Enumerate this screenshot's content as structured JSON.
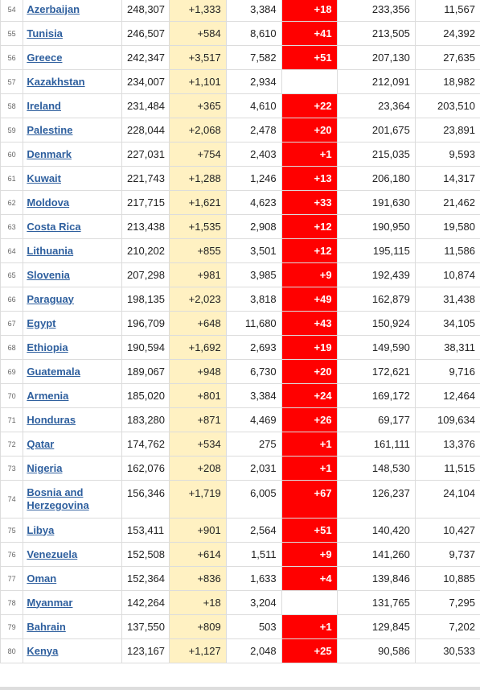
{
  "colors": {
    "new_cases_bg": "#fff1c2",
    "new_deaths_bg": "#ff0000",
    "link": "#2e5f9e"
  },
  "rows": [
    {
      "rank": "54",
      "country": "Azerbaijan",
      "total_cases": "248,307",
      "new_cases": "+1,333",
      "total_deaths": "3,384",
      "new_deaths": "+18",
      "total_recovered": "233,356",
      "active_cases": "11,567"
    },
    {
      "rank": "55",
      "country": "Tunisia",
      "total_cases": "246,507",
      "new_cases": "+584",
      "total_deaths": "8,610",
      "new_deaths": "+41",
      "total_recovered": "213,505",
      "active_cases": "24,392"
    },
    {
      "rank": "56",
      "country": "Greece",
      "total_cases": "242,347",
      "new_cases": "+3,517",
      "total_deaths": "7,582",
      "new_deaths": "+51",
      "total_recovered": "207,130",
      "active_cases": "27,635"
    },
    {
      "rank": "57",
      "country": "Kazakhstan",
      "total_cases": "234,007",
      "new_cases": "+1,101",
      "total_deaths": "2,934",
      "new_deaths": "",
      "total_recovered": "212,091",
      "active_cases": "18,982"
    },
    {
      "rank": "58",
      "country": "Ireland",
      "total_cases": "231,484",
      "new_cases": "+365",
      "total_deaths": "4,610",
      "new_deaths": "+22",
      "total_recovered": "23,364",
      "active_cases": "203,510"
    },
    {
      "rank": "59",
      "country": "Palestine",
      "total_cases": "228,044",
      "new_cases": "+2,068",
      "total_deaths": "2,478",
      "new_deaths": "+20",
      "total_recovered": "201,675",
      "active_cases": "23,891"
    },
    {
      "rank": "60",
      "country": "Denmark",
      "total_cases": "227,031",
      "new_cases": "+754",
      "total_deaths": "2,403",
      "new_deaths": "+1",
      "total_recovered": "215,035",
      "active_cases": "9,593"
    },
    {
      "rank": "61",
      "country": "Kuwait",
      "total_cases": "221,743",
      "new_cases": "+1,288",
      "total_deaths": "1,246",
      "new_deaths": "+13",
      "total_recovered": "206,180",
      "active_cases": "14,317"
    },
    {
      "rank": "62",
      "country": "Moldova",
      "total_cases": "217,715",
      "new_cases": "+1,621",
      "total_deaths": "4,623",
      "new_deaths": "+33",
      "total_recovered": "191,630",
      "active_cases": "21,462"
    },
    {
      "rank": "63",
      "country": "Costa Rica",
      "total_cases": "213,438",
      "new_cases": "+1,535",
      "total_deaths": "2,908",
      "new_deaths": "+12",
      "total_recovered": "190,950",
      "active_cases": "19,580"
    },
    {
      "rank": "64",
      "country": "Lithuania",
      "total_cases": "210,202",
      "new_cases": "+855",
      "total_deaths": "3,501",
      "new_deaths": "+12",
      "total_recovered": "195,115",
      "active_cases": "11,586"
    },
    {
      "rank": "65",
      "country": "Slovenia",
      "total_cases": "207,298",
      "new_cases": "+981",
      "total_deaths": "3,985",
      "new_deaths": "+9",
      "total_recovered": "192,439",
      "active_cases": "10,874"
    },
    {
      "rank": "66",
      "country": "Paraguay",
      "total_cases": "198,135",
      "new_cases": "+2,023",
      "total_deaths": "3,818",
      "new_deaths": "+49",
      "total_recovered": "162,879",
      "active_cases": "31,438"
    },
    {
      "rank": "67",
      "country": "Egypt",
      "total_cases": "196,709",
      "new_cases": "+648",
      "total_deaths": "11,680",
      "new_deaths": "+43",
      "total_recovered": "150,924",
      "active_cases": "34,105"
    },
    {
      "rank": "68",
      "country": "Ethiopia",
      "total_cases": "190,594",
      "new_cases": "+1,692",
      "total_deaths": "2,693",
      "new_deaths": "+19",
      "total_recovered": "149,590",
      "active_cases": "38,311"
    },
    {
      "rank": "69",
      "country": "Guatemala",
      "total_cases": "189,067",
      "new_cases": "+948",
      "total_deaths": "6,730",
      "new_deaths": "+20",
      "total_recovered": "172,621",
      "active_cases": "9,716"
    },
    {
      "rank": "70",
      "country": "Armenia",
      "total_cases": "185,020",
      "new_cases": "+801",
      "total_deaths": "3,384",
      "new_deaths": "+24",
      "total_recovered": "169,172",
      "active_cases": "12,464"
    },
    {
      "rank": "71",
      "country": "Honduras",
      "total_cases": "183,280",
      "new_cases": "+871",
      "total_deaths": "4,469",
      "new_deaths": "+26",
      "total_recovered": "69,177",
      "active_cases": "109,634"
    },
    {
      "rank": "72",
      "country": "Qatar",
      "total_cases": "174,762",
      "new_cases": "+534",
      "total_deaths": "275",
      "new_deaths": "+1",
      "total_recovered": "161,111",
      "active_cases": "13,376"
    },
    {
      "rank": "73",
      "country": "Nigeria",
      "total_cases": "162,076",
      "new_cases": "+208",
      "total_deaths": "2,031",
      "new_deaths": "+1",
      "total_recovered": "148,530",
      "active_cases": "11,515"
    },
    {
      "rank": "74",
      "country": "Bosnia and Herzegovina",
      "total_cases": "156,346",
      "new_cases": "+1,719",
      "total_deaths": "6,005",
      "new_deaths": "+67",
      "total_recovered": "126,237",
      "active_cases": "24,104"
    },
    {
      "rank": "75",
      "country": "Libya",
      "total_cases": "153,411",
      "new_cases": "+901",
      "total_deaths": "2,564",
      "new_deaths": "+51",
      "total_recovered": "140,420",
      "active_cases": "10,427"
    },
    {
      "rank": "76",
      "country": "Venezuela",
      "total_cases": "152,508",
      "new_cases": "+614",
      "total_deaths": "1,511",
      "new_deaths": "+9",
      "total_recovered": "141,260",
      "active_cases": "9,737"
    },
    {
      "rank": "77",
      "country": "Oman",
      "total_cases": "152,364",
      "new_cases": "+836",
      "total_deaths": "1,633",
      "new_deaths": "+4",
      "total_recovered": "139,846",
      "active_cases": "10,885"
    },
    {
      "rank": "78",
      "country": "Myanmar",
      "total_cases": "142,264",
      "new_cases": "+18",
      "total_deaths": "3,204",
      "new_deaths": "",
      "total_recovered": "131,765",
      "active_cases": "7,295"
    },
    {
      "rank": "79",
      "country": "Bahrain",
      "total_cases": "137,550",
      "new_cases": "+809",
      "total_deaths": "503",
      "new_deaths": "+1",
      "total_recovered": "129,845",
      "active_cases": "7,202"
    },
    {
      "rank": "80",
      "country": "Kenya",
      "total_cases": "123,167",
      "new_cases": "+1,127",
      "total_deaths": "2,048",
      "new_deaths": "+25",
      "total_recovered": "90,586",
      "active_cases": "30,533"
    }
  ]
}
